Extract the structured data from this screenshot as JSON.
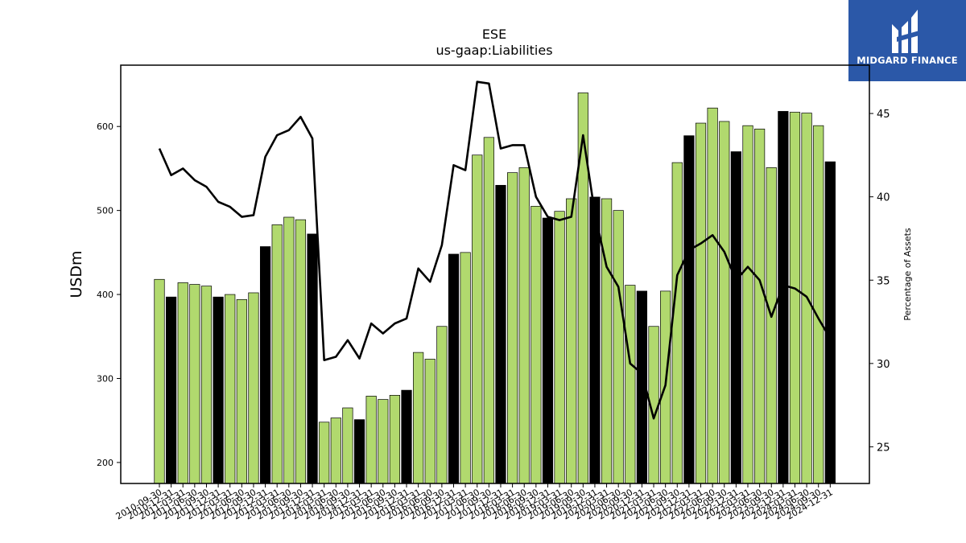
{
  "brand": {
    "name": "MIDGARD FINANCE",
    "icon": "midgard-logo-icon",
    "bg_color": "#2b58a8"
  },
  "colors": {
    "bar_green": "#b1d96e",
    "bar_black": "#000000",
    "line": "#000000"
  },
  "chart_data": {
    "type": "bar",
    "title": "ESE",
    "subtitle": "us-gaap:Liabilities",
    "ylabel": "USDm",
    "y2label": "Percentage of Assets",
    "ylim": [
      175,
      673
    ],
    "y2lim": [
      22.8,
      47.9
    ],
    "yticks": [
      200,
      300,
      400,
      500,
      600
    ],
    "y2ticks": [
      25,
      30,
      35,
      40,
      45
    ],
    "categories": [
      "2010-09-30",
      "2010-12-31",
      "2011-03-31",
      "2011-06-30",
      "2011-09-30",
      "2011-12-31",
      "2012-03-31",
      "2012-06-30",
      "2012-09-30",
      "2012-12-31",
      "2013-03-31",
      "2013-06-30",
      "2013-09-30",
      "2013-12-31",
      "2014-03-31",
      "2014-06-30",
      "2014-09-30",
      "2014-12-31",
      "2015-03-31",
      "2015-06-30",
      "2015-09-30",
      "2015-12-31",
      "2016-03-31",
      "2016-06-30",
      "2016-09-30",
      "2016-12-31",
      "2017-03-31",
      "2017-06-30",
      "2017-09-30",
      "2017-12-31",
      "2018-03-31",
      "2018-06-30",
      "2018-09-30",
      "2018-12-31",
      "2019-03-31",
      "2019-06-30",
      "2019-09-30",
      "2019-12-31",
      "2020-03-31",
      "2020-06-30",
      "2020-09-30",
      "2020-12-31",
      "2021-03-31",
      "2021-06-30",
      "2021-09-30",
      "2021-12-31",
      "2022-03-31",
      "2022-06-30",
      "2022-09-30",
      "2022-12-31",
      "2023-03-31",
      "2023-06-30",
      "2023-09-30",
      "2023-12-31",
      "2024-03-31",
      "2024-06-30",
      "2024-09-30",
      "2024-12-31"
    ],
    "series": [
      {
        "kind": "bar",
        "values": [
          418,
          397,
          414,
          412,
          410,
          397,
          400,
          394,
          402,
          457,
          483,
          492,
          489,
          472,
          248,
          253,
          265,
          251,
          279,
          275,
          280,
          286,
          331,
          323,
          362,
          448,
          450,
          566,
          587,
          530,
          545,
          551,
          505,
          491,
          499,
          514,
          640,
          516,
          514,
          500,
          411,
          404,
          362,
          404,
          557,
          589,
          604,
          622,
          606,
          570,
          601,
          597,
          551,
          618,
          617,
          616,
          601,
          558
        ],
        "highlight": [
          false,
          true,
          false,
          false,
          false,
          true,
          false,
          false,
          false,
          true,
          false,
          false,
          false,
          true,
          false,
          false,
          false,
          true,
          false,
          false,
          false,
          true,
          false,
          false,
          false,
          true,
          false,
          false,
          false,
          true,
          false,
          false,
          false,
          true,
          false,
          false,
          false,
          true,
          false,
          false,
          false,
          true,
          false,
          false,
          false,
          true,
          false,
          false,
          false,
          true,
          false,
          false,
          false,
          true,
          false,
          false,
          false,
          true
        ]
      },
      {
        "kind": "line",
        "axis": "right",
        "values": [
          42.9,
          41.3,
          41.7,
          41.0,
          40.6,
          39.7,
          39.4,
          38.8,
          38.9,
          42.4,
          43.7,
          44.0,
          44.8,
          43.5,
          30.2,
          30.4,
          31.4,
          30.3,
          32.4,
          31.8,
          32.4,
          32.7,
          35.7,
          34.9,
          37.1,
          41.9,
          41.6,
          46.9,
          46.8,
          42.9,
          43.1,
          43.1,
          40.0,
          38.8,
          38.6,
          38.8,
          43.7,
          39.0,
          35.8,
          34.6,
          30.0,
          29.4,
          26.7,
          28.7,
          35.3,
          36.8,
          37.2,
          37.7,
          36.7,
          35.0,
          35.8,
          35.0,
          32.8,
          34.7,
          34.5,
          34.0,
          32.7,
          31.5
        ]
      }
    ],
    "grid": false,
    "legend": "none"
  }
}
